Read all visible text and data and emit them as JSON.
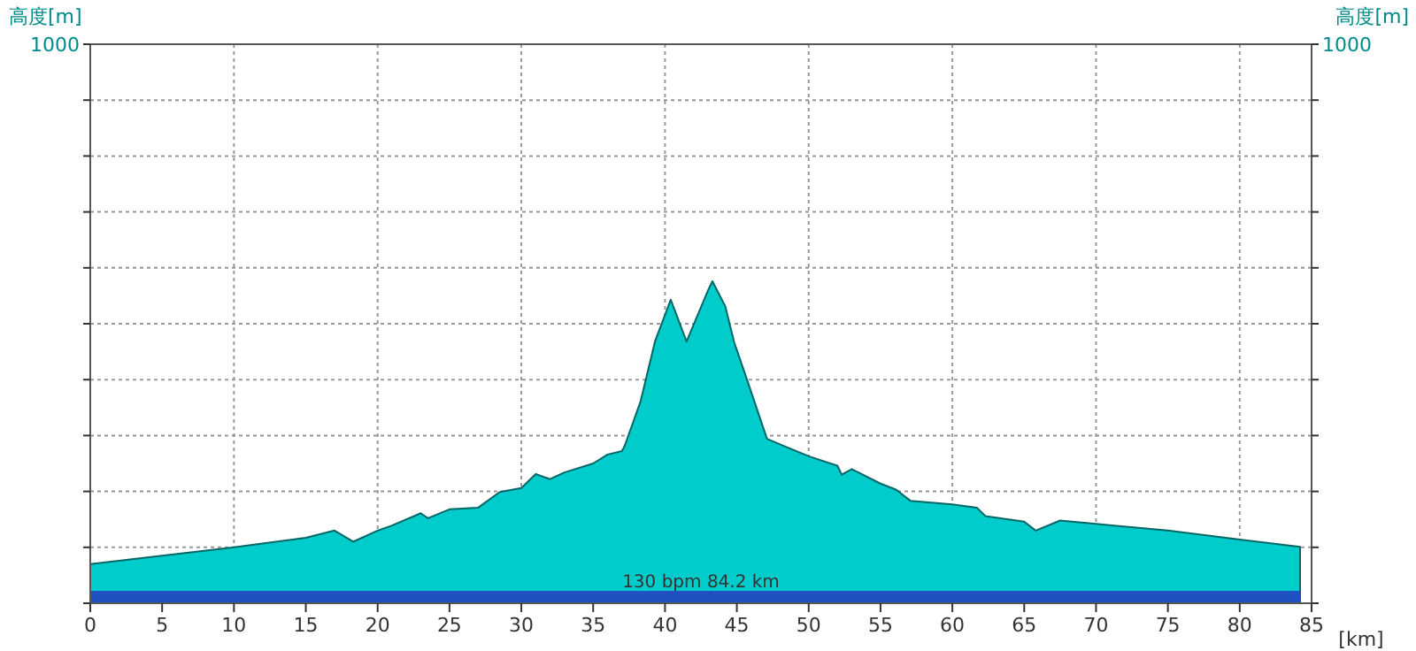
{
  "chart_data": {
    "type": "area",
    "ylabel": "高度[m]",
    "y2label": "高度[m]",
    "xlabel": "[km]",
    "x": [
      0,
      5,
      10,
      15,
      17,
      18.3,
      20,
      21,
      23,
      23.5,
      25,
      27,
      28.5,
      30,
      31,
      32,
      33,
      35,
      36,
      37,
      37.2,
      38.3,
      39.3,
      40.4,
      41.5,
      43,
      43.3,
      44.2,
      44.8,
      45.8,
      47.1,
      48.3,
      50.1,
      52,
      52.3,
      53,
      55,
      56.1,
      57.1,
      60,
      61.7,
      62.3,
      65,
      65.8,
      67.5,
      70,
      75,
      80,
      84.2
    ],
    "series": [
      {
        "color": "#00cccc",
        "values": [
          70,
          85,
          100,
          117,
          130,
          110,
          130,
          139,
          161,
          152,
          168,
          171,
          199,
          206,
          231,
          222,
          234,
          250,
          266,
          272,
          282,
          361,
          468,
          543,
          468,
          560,
          576,
          531,
          468,
          393,
          294,
          281,
          262,
          246,
          230,
          240,
          214,
          203,
          183,
          177,
          171,
          156,
          146,
          130,
          148,
          142,
          130,
          114,
          101
        ]
      }
    ],
    "xlim": [
      0,
      85
    ],
    "xticks": [
      0,
      5,
      10,
      15,
      20,
      25,
      30,
      35,
      40,
      45,
      50,
      55,
      60,
      65,
      70,
      75,
      80,
      85
    ],
    "ylim": [
      0,
      1000
    ],
    "yticks": [
      {
        "value": 0,
        "label": null
      },
      {
        "value": 100,
        "label": null
      },
      {
        "value": 200,
        "label": null
      },
      {
        "value": 300,
        "label": null
      },
      {
        "value": 400,
        "label": null
      },
      {
        "value": 500,
        "label": null
      },
      {
        "value": 600,
        "label": null
      },
      {
        "value": 700,
        "label": null
      },
      {
        "value": 800,
        "label": null
      },
      {
        "value": 900,
        "label": null
      },
      1000
    ],
    "bands": [
      {
        "axis": "y",
        "from": 0,
        "to": 22,
        "color": "#2150c0"
      }
    ],
    "annotations": [
      "130 bpm 84.2 km",
      "1000"
    ],
    "grid": true
  }
}
